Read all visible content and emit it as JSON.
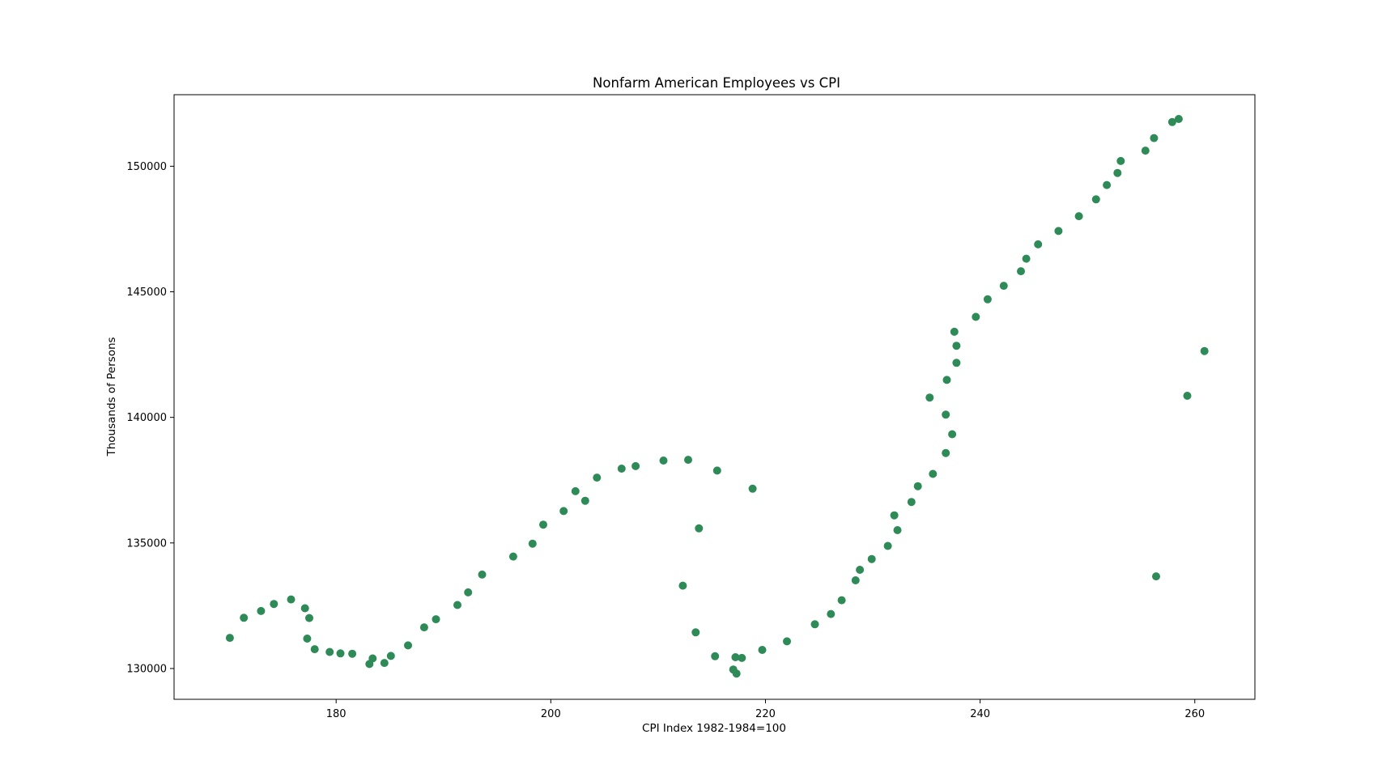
{
  "chart_data": {
    "type": "scatter",
    "title": "Nonfarm American Employees vs CPI",
    "xlabel": "CPI Index 1982-1984=100",
    "ylabel": "Thousands of Persons",
    "xlim": [
      164.9,
      265.6
    ],
    "ylim": [
      128774,
      152848
    ],
    "xticks": [
      180,
      200,
      220,
      240,
      260
    ],
    "yticks": [
      130000,
      135000,
      140000,
      145000,
      150000
    ],
    "grid": false,
    "marker_color": "#2e8b57",
    "points": [
      [
        170.1,
        131220
      ],
      [
        171.4,
        132020
      ],
      [
        173.0,
        132290
      ],
      [
        174.2,
        132570
      ],
      [
        175.8,
        132750
      ],
      [
        177.1,
        132400
      ],
      [
        177.3,
        131190
      ],
      [
        177.5,
        132010
      ],
      [
        178.0,
        130770
      ],
      [
        179.4,
        130660
      ],
      [
        180.4,
        130600
      ],
      [
        181.5,
        130590
      ],
      [
        183.1,
        130180
      ],
      [
        183.4,
        130400
      ],
      [
        184.5,
        130220
      ],
      [
        185.1,
        130500
      ],
      [
        186.7,
        130920
      ],
      [
        188.2,
        131640
      ],
      [
        189.3,
        131960
      ],
      [
        191.3,
        132530
      ],
      [
        192.3,
        133030
      ],
      [
        193.6,
        133740
      ],
      [
        196.5,
        134460
      ],
      [
        198.3,
        134970
      ],
      [
        199.3,
        135730
      ],
      [
        201.2,
        136270
      ],
      [
        202.3,
        137060
      ],
      [
        203.2,
        136680
      ],
      [
        204.3,
        137600
      ],
      [
        206.6,
        137960
      ],
      [
        207.9,
        138060
      ],
      [
        210.5,
        138280
      ],
      [
        212.8,
        138310
      ],
      [
        215.5,
        137880
      ],
      [
        218.8,
        137160
      ],
      [
        213.8,
        135580
      ],
      [
        212.3,
        133300
      ],
      [
        213.5,
        131440
      ],
      [
        215.3,
        130490
      ],
      [
        217.2,
        130450
      ],
      [
        217.8,
        130420
      ],
      [
        217.0,
        129960
      ],
      [
        217.3,
        129800
      ],
      [
        219.7,
        130740
      ],
      [
        222.0,
        131080
      ],
      [
        224.6,
        131760
      ],
      [
        226.1,
        132170
      ],
      [
        227.1,
        132720
      ],
      [
        228.4,
        133510
      ],
      [
        228.8,
        133930
      ],
      [
        229.9,
        134360
      ],
      [
        231.4,
        134880
      ],
      [
        232.0,
        136100
      ],
      [
        232.3,
        135510
      ],
      [
        233.6,
        136630
      ],
      [
        234.2,
        137260
      ],
      [
        235.6,
        137750
      ],
      [
        236.8,
        138580
      ],
      [
        235.3,
        140790
      ],
      [
        236.8,
        140110
      ],
      [
        236.9,
        141490
      ],
      [
        237.4,
        139330
      ],
      [
        237.6,
        143410
      ],
      [
        237.8,
        142170
      ],
      [
        237.8,
        142850
      ],
      [
        239.6,
        144000
      ],
      [
        240.7,
        144700
      ],
      [
        242.2,
        145240
      ],
      [
        243.8,
        145820
      ],
      [
        244.3,
        146320
      ],
      [
        245.4,
        146890
      ],
      [
        247.3,
        147420
      ],
      [
        249.2,
        148010
      ],
      [
        250.8,
        148680
      ],
      [
        251.8,
        149250
      ],
      [
        252.8,
        149730
      ],
      [
        253.1,
        150210
      ],
      [
        255.4,
        150620
      ],
      [
        256.2,
        151120
      ],
      [
        257.9,
        151760
      ],
      [
        258.5,
        151880
      ],
      [
        256.4,
        133670
      ],
      [
        259.3,
        140860
      ],
      [
        260.9,
        142640
      ]
    ]
  }
}
